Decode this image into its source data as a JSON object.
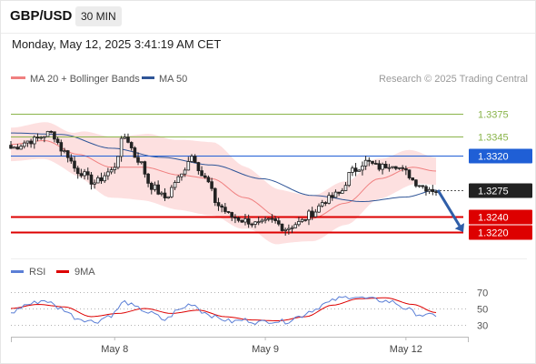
{
  "header": {
    "symbol": "GBP/USD",
    "timeframe": "30 MIN",
    "timestamp": "Monday, May 12, 2025 3:41:19 AM CET"
  },
  "legend": {
    "ma20_label": "MA 20 + Bollinger Bands",
    "ma50_label": "MA 50",
    "credit": "Research © 2025 Trading Central",
    "rsi_label": "RSI",
    "rsi_ma_label": "9MA"
  },
  "colors": {
    "ma20": "#f08080",
    "ma50": "#2f5597",
    "bollinger_fill": "#fde0e0",
    "candle_up": "#ffffff",
    "candle_down": "#222222",
    "target_green": "#8ab44a",
    "pivot_blue": "#1f5fd6",
    "support_red": "#dd0000",
    "rsi": "#5b7fd6",
    "rsi_ma": "#dd0000",
    "arrow": "#2f5ea8"
  },
  "chart_data": [
    {
      "type": "candlestick",
      "x_labels": [
        "May 8",
        "May 9",
        "May 12"
      ],
      "y_range": [
        1.3195,
        1.3405
      ],
      "levels": [
        {
          "value": 1.3375,
          "label": "1.3375",
          "style": "target"
        },
        {
          "value": 1.3345,
          "label": "1.3345",
          "style": "target"
        },
        {
          "value": 1.332,
          "label": "1.3320",
          "style": "pivot"
        },
        {
          "value": 1.3275,
          "label": "1.3275",
          "style": "last"
        },
        {
          "value": 1.324,
          "label": "1.3240",
          "style": "support"
        },
        {
          "value": 1.322,
          "label": "1.3220",
          "style": "support"
        }
      ],
      "close_anchors": [
        [
          0,
          1.333
        ],
        [
          6,
          1.334
        ],
        [
          12,
          1.335
        ],
        [
          16,
          1.3325
        ],
        [
          20,
          1.33
        ],
        [
          25,
          1.3285
        ],
        [
          30,
          1.33
        ],
        [
          34,
          1.3345
        ],
        [
          38,
          1.3315
        ],
        [
          42,
          1.328
        ],
        [
          46,
          1.3265
        ],
        [
          50,
          1.329
        ],
        [
          54,
          1.332
        ],
        [
          58,
          1.329
        ],
        [
          62,
          1.3255
        ],
        [
          66,
          1.324
        ],
        [
          70,
          1.3235
        ],
        [
          74,
          1.323
        ],
        [
          78,
          1.3235
        ],
        [
          82,
          1.3225
        ],
        [
          86,
          1.3232
        ],
        [
          90,
          1.3245
        ],
        [
          94,
          1.3262
        ],
        [
          98,
          1.327
        ],
        [
          102,
          1.33
        ],
        [
          106,
          1.3312
        ],
        [
          110,
          1.3305
        ],
        [
          114,
          1.331
        ],
        [
          118,
          1.3298
        ],
        [
          121,
          1.3285
        ],
        [
          124,
          1.3278
        ],
        [
          127,
          1.3275
        ]
      ],
      "ma20_anchors": [
        [
          0,
          1.3335
        ],
        [
          10,
          1.334
        ],
        [
          20,
          1.3322
        ],
        [
          30,
          1.3305
        ],
        [
          40,
          1.3305
        ],
        [
          50,
          1.3295
        ],
        [
          60,
          1.329
        ],
        [
          70,
          1.3265
        ],
        [
          80,
          1.324
        ],
        [
          90,
          1.3238
        ],
        [
          100,
          1.3258
        ],
        [
          110,
          1.329
        ],
        [
          120,
          1.3305
        ],
        [
          127,
          1.33
        ]
      ],
      "ma50_anchors": [
        [
          0,
          1.335
        ],
        [
          15,
          1.3348
        ],
        [
          30,
          1.333
        ],
        [
          45,
          1.3318
        ],
        [
          60,
          1.3308
        ],
        [
          75,
          1.329
        ],
        [
          90,
          1.3268
        ],
        [
          105,
          1.326
        ],
        [
          118,
          1.3266
        ],
        [
          127,
          1.3275
        ]
      ],
      "bollinger_width_anchors": [
        [
          0,
          0.0022
        ],
        [
          15,
          0.0025
        ],
        [
          30,
          0.004
        ],
        [
          45,
          0.0045
        ],
        [
          60,
          0.0048
        ],
        [
          75,
          0.0038
        ],
        [
          90,
          0.003
        ],
        [
          105,
          0.0028
        ],
        [
          115,
          0.0025
        ],
        [
          127,
          0.0018
        ]
      ],
      "candle_count": 128,
      "forecast_arrow": {
        "from": 1.3275,
        "to": 1.322
      }
    },
    {
      "type": "line",
      "y_ticks": [
        "70",
        "50",
        "30"
      ],
      "y_range": [
        20,
        80
      ],
      "rsi_anchors": [
        [
          0,
          45
        ],
        [
          5,
          55
        ],
        [
          10,
          60
        ],
        [
          15,
          50
        ],
        [
          20,
          38
        ],
        [
          25,
          34
        ],
        [
          30,
          42
        ],
        [
          34,
          58
        ],
        [
          38,
          50
        ],
        [
          42,
          44
        ],
        [
          46,
          36
        ],
        [
          50,
          48
        ],
        [
          54,
          56
        ],
        [
          58,
          45
        ],
        [
          62,
          38
        ],
        [
          66,
          34
        ],
        [
          70,
          36
        ],
        [
          74,
          33
        ],
        [
          78,
          35
        ],
        [
          82,
          34
        ],
        [
          86,
          40
        ],
        [
          90,
          48
        ],
        [
          94,
          56
        ],
        [
          98,
          62
        ],
        [
          102,
          65
        ],
        [
          106,
          62
        ],
        [
          110,
          60
        ],
        [
          114,
          58
        ],
        [
          118,
          50
        ],
        [
          121,
          44
        ],
        [
          124,
          41
        ],
        [
          127,
          42
        ]
      ],
      "rsi_ma_anchors": [
        [
          0,
          50
        ],
        [
          8,
          55
        ],
        [
          16,
          52
        ],
        [
          24,
          40
        ],
        [
          32,
          44
        ],
        [
          40,
          50
        ],
        [
          48,
          44
        ],
        [
          56,
          48
        ],
        [
          64,
          40
        ],
        [
          72,
          36
        ],
        [
          80,
          35
        ],
        [
          88,
          40
        ],
        [
          96,
          54
        ],
        [
          104,
          62
        ],
        [
          112,
          63
        ],
        [
          120,
          55
        ],
        [
          127,
          45
        ]
      ]
    }
  ]
}
